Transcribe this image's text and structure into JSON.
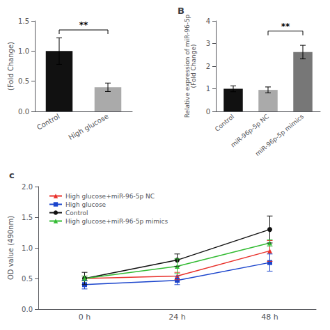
{
  "chart_data": [
    {
      "type": "bar",
      "categories": [
        "Control",
        "High glucose"
      ],
      "values": [
        1.0,
        0.4
      ],
      "errors": [
        0.22,
        0.07
      ],
      "colors": [
        "#111111",
        "#aaaaaa"
      ],
      "ylabel": "(Fold Change)",
      "ylim": [
        0,
        1.5
      ],
      "yticks": [
        {
          "value": 0,
          "label": "0.0"
        },
        0.5,
        {
          "value": 1,
          "label": "1.0"
        },
        1.5
      ],
      "grid": false,
      "annotations": [
        {
          "text": "**",
          "x": [
            "Control",
            "High glucose"
          ],
          "y": 1.35
        }
      ]
    },
    {
      "type": "bar",
      "title": "B",
      "categories": [
        "Control",
        "miR-96p-5p NC",
        "miR-96p-5p mimics"
      ],
      "values": [
        1.0,
        0.95,
        2.62
      ],
      "errors": [
        0.13,
        0.13,
        0.3
      ],
      "colors": [
        "#111111",
        "#aaaaaa",
        "#777777"
      ],
      "ylabel": "Relative expression of miR-96-5p\n(Fold Change)",
      "ylim": [
        0,
        4
      ],
      "yticks": [
        0,
        1,
        2,
        3,
        4
      ],
      "grid": false,
      "annotations": [
        {
          "text": "**",
          "x": [
            "miR-96p-5p NC",
            "miR-96p-5p mimics"
          ],
          "y": 3.55
        }
      ]
    },
    {
      "type": "line",
      "title": "c",
      "categories": [
        "0 h",
        "24 h",
        "48 h"
      ],
      "series": [
        {
          "name": "High glucose+miR-96-5p NC",
          "color": "#e8302a",
          "marker": "triangle",
          "values": [
            0.5,
            0.54,
            0.95
          ],
          "errors": [
            0.04,
            0.06,
            0.17
          ]
        },
        {
          "name": "High glucose",
          "color": "#1a44cc",
          "marker": "square",
          "values": [
            0.4,
            0.47,
            0.76
          ],
          "errors": [
            0.07,
            0.07,
            0.14
          ]
        },
        {
          "name": "Control",
          "color": "#111111",
          "marker": "circle",
          "values": [
            0.5,
            0.8,
            1.3
          ],
          "errors": [
            0.1,
            0.1,
            0.22
          ]
        },
        {
          "name": "High glucose+miR-96-5p mimics",
          "color": "#33bb33",
          "marker": "triangle",
          "values": [
            0.5,
            0.7,
            1.08
          ],
          "errors": [
            0.04,
            0.12,
            0.05
          ]
        }
      ],
      "ylabel": "OD value (490nm)",
      "ylim": [
        0.0,
        2.0
      ],
      "yticks": [
        {
          "value": 0,
          "label": "0.0"
        },
        0.5,
        {
          "value": 1,
          "label": "1.0"
        },
        1.5,
        {
          "value": 2,
          "label": "2.0"
        }
      ],
      "grid": false,
      "legend": "upper left"
    }
  ]
}
